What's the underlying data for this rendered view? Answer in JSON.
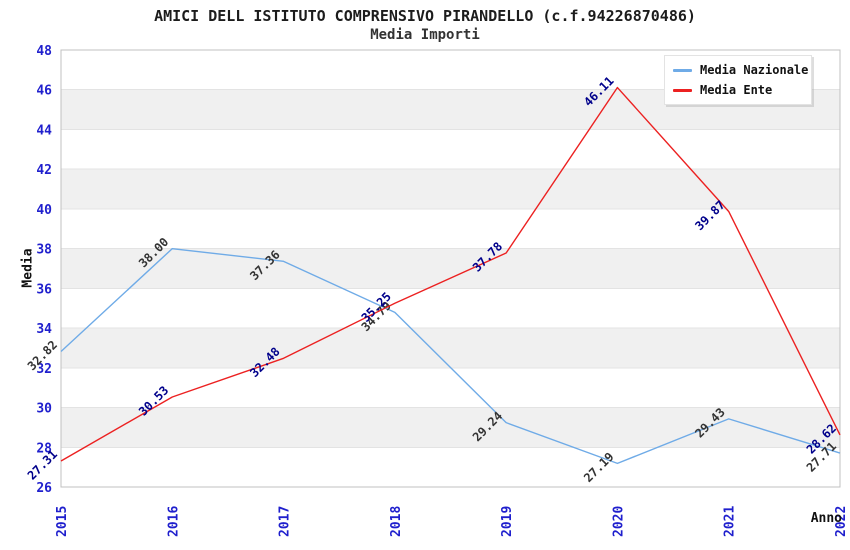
{
  "header": {
    "title": "AMICI DELL ISTITUTO COMPRENSIVO PIRANDELLO (c.f.94226870486)",
    "subtitle": "Media Importi"
  },
  "chart_data": {
    "type": "line",
    "title": "AMICI DELL ISTITUTO COMPRENSIVO PIRANDELLO (c.f.94226870486)",
    "subtitle": "Media Importi",
    "xlabel": "Anno",
    "ylabel": "Media",
    "categories": [
      "2015",
      "2016",
      "2017",
      "2018",
      "2019",
      "2020",
      "2021",
      "2022"
    ],
    "series": [
      {
        "name": "Media Nazionale",
        "color": "#6fabe7",
        "label_color": "#333333",
        "values": [
          32.82,
          38.0,
          37.36,
          34.79,
          29.24,
          27.19,
          29.43,
          27.71
        ]
      },
      {
        "name": "Media Ente",
        "color": "#ec2121",
        "label_color": "#00008b",
        "values": [
          27.31,
          30.53,
          32.48,
          35.25,
          37.78,
          46.11,
          39.87,
          28.62
        ]
      }
    ],
    "ylim": [
      26,
      48
    ],
    "ytick_step": 2,
    "grid": "horizontal-bands",
    "legend_position": "top-right"
  },
  "colors": {
    "tick_label": "#1f1fcd",
    "band": "#f0f0f0",
    "gridline": "#e3e3e3",
    "plot_border": "#c0c0c0"
  }
}
